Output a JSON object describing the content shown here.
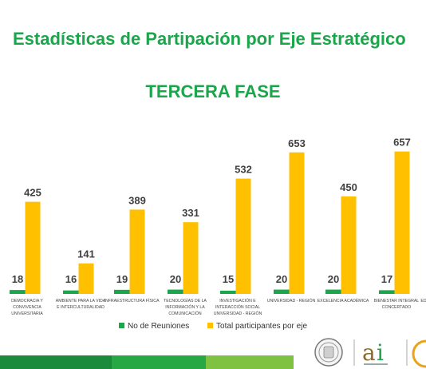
{
  "title": "Estadísticas de Partipación por Eje Estratégico",
  "subtitle": "TERCERA FASE",
  "colors": {
    "green": "#1aa64a",
    "yellow": "#ffc000"
  },
  "legend": {
    "reuniones": "No de Reuniones",
    "participantes": "Total participantes por eje"
  },
  "chart_data": {
    "type": "bar",
    "categories": [
      [
        "DEMOCRACIA Y",
        "CONVIVENCIA",
        "UNIVERSITARIA"
      ],
      [
        "AMBIENTE PARA LA VIDA",
        "E INTERCULTURALIDAD"
      ],
      [
        "INFRAESTRUCTURA FÍSICA"
      ],
      [
        "TECNOLOGÍAS DE LA",
        "INFORMACIÓN Y LA",
        "COMUNICACIÓN"
      ],
      [
        "INVESTIGACIÓN E",
        "INTERACCIÓN SOCIAL",
        "UNIVERSIDAD - REGIÓN"
      ],
      [
        "UNIVERSIDAD - REGIÓN"
      ],
      [
        "EXCELENCIA ACADÉMICA"
      ],
      [
        "BIENESTAR INTEGRAL",
        "CONCERTADO"
      ],
      [
        "ED"
      ]
    ],
    "series": [
      {
        "name": "No de Reuniones",
        "values": [
          18,
          16,
          19,
          20,
          15,
          20,
          20,
          17,
          null
        ]
      },
      {
        "name": "Total participantes por eje",
        "values": [
          425,
          141,
          389,
          331,
          532,
          653,
          450,
          657,
          null
        ]
      }
    ],
    "ylim": [
      0,
      700
    ],
    "grid": false,
    "legend_position": "bottom"
  }
}
